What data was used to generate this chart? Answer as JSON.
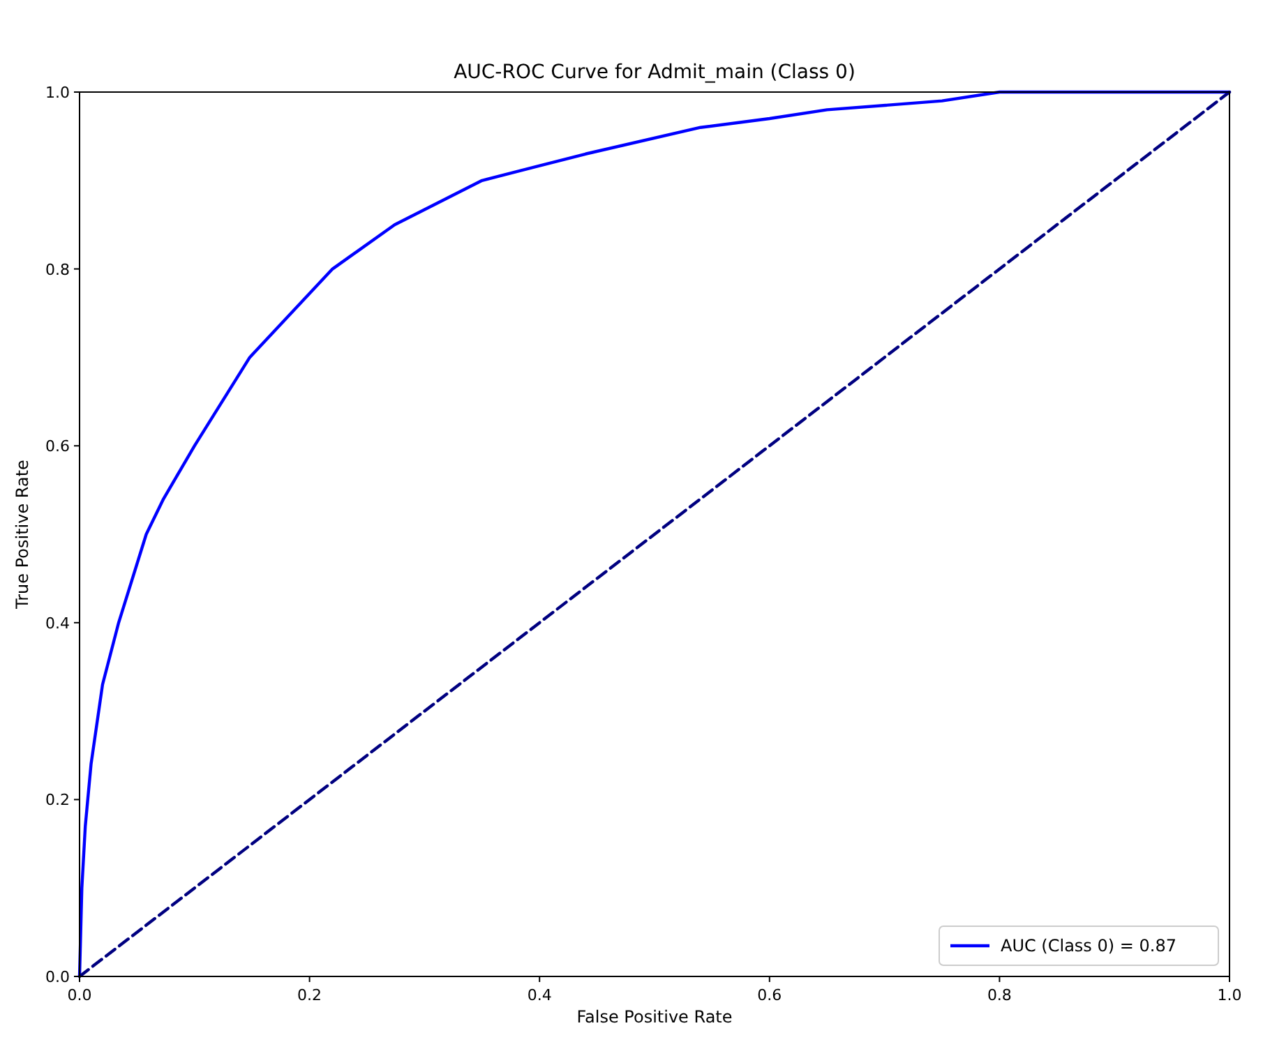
{
  "chart_data": {
    "type": "line",
    "title": "AUC-ROC Curve for Admit_main (Class 0)",
    "xlabel": "False Positive Rate",
    "ylabel": "True Positive Rate",
    "series": [
      {
        "name": "AUC (Class 0) = 0.87",
        "color": "#0000ff",
        "x": [
          0,
          0.002,
          0.005,
          0.01,
          0.02,
          0.034,
          0.058,
          0.073,
          0.1,
          0.148,
          0.22,
          0.274,
          0.35,
          0.44,
          0.54,
          0.6,
          0.65,
          0.75,
          0.8,
          0.9,
          1
        ],
        "values": [
          0,
          0.1,
          0.17,
          0.24,
          0.33,
          0.4,
          0.5,
          0.54,
          0.6,
          0.7,
          0.8,
          0.85,
          0.9,
          0.93,
          0.96,
          0.97,
          0.98,
          0.99,
          1,
          1,
          1
        ]
      },
      {
        "type": "line",
        "color": "#000080",
        "line_style": "dashed",
        "x": [
          0,
          1
        ],
        "values": [
          0,
          1
        ]
      }
    ],
    "xlim": [
      0,
      1
    ],
    "ylim": [
      0,
      1
    ],
    "xticks": [
      {
        "value": 0,
        "label": "0.0"
      },
      {
        "value": 0.2,
        "label": "0.2"
      },
      {
        "value": 0.4,
        "label": "0.4"
      },
      {
        "value": 0.6,
        "label": "0.6"
      },
      {
        "value": 0.8,
        "label": "0.8"
      },
      {
        "value": 1,
        "label": "1.0"
      }
    ],
    "yticks": [
      {
        "value": 0,
        "label": "0.0"
      },
      {
        "value": 0.2,
        "label": "0.2"
      },
      {
        "value": 0.4,
        "label": "0.4"
      },
      {
        "value": 0.6,
        "label": "0.6"
      },
      {
        "value": 0.8,
        "label": "0.8"
      },
      {
        "value": 1,
        "label": "1.0"
      }
    ],
    "grid": false,
    "legend": "bottom right"
  }
}
